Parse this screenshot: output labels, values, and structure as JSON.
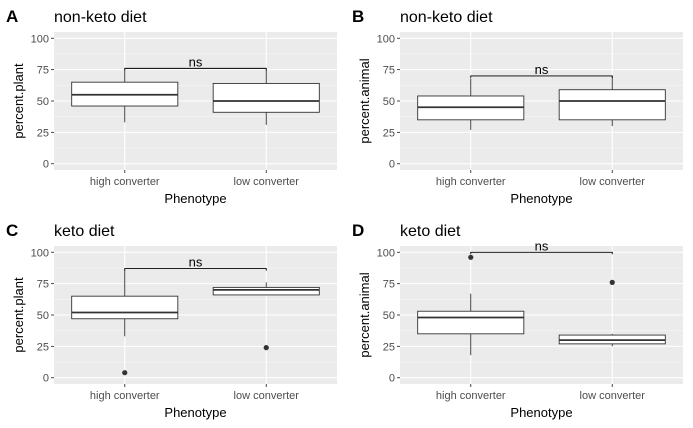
{
  "colors": {
    "panel_background": "#ebebeb",
    "grid_major": "#ffffff",
    "grid_minor": "#f5f5f5",
    "box_fill": "#ffffff",
    "box_stroke": "#333333",
    "outlier": "#333333",
    "tick_text": "#4d4d4d",
    "text": "#000000"
  },
  "chart_data": [
    {
      "panel": "A",
      "type": "boxplot",
      "title": "non-keto diet",
      "xlabel": "Phenotype",
      "ylabel": "percent.plant",
      "categories": [
        "high converter",
        "low converter"
      ],
      "y_ticks": [
        "0",
        "25",
        "50",
        "75",
        "100"
      ],
      "ylim": [
        -5,
        105
      ],
      "grid": true,
      "boxes": [
        {
          "category": "high converter",
          "lower_whisker": 33,
          "q1": 46,
          "median": 55,
          "q3": 65,
          "upper_whisker": 75,
          "outliers": []
        },
        {
          "category": "low converter",
          "lower_whisker": 31,
          "q1": 41,
          "median": 50,
          "q3": 64,
          "upper_whisker": 75,
          "outliers": []
        }
      ],
      "significance": {
        "label": "ns",
        "y": 76,
        "tick": 2
      }
    },
    {
      "panel": "B",
      "type": "boxplot",
      "title": "non-keto diet",
      "xlabel": "Phenotype",
      "ylabel": "percent.animal",
      "categories": [
        "high converter",
        "low converter"
      ],
      "y_ticks": [
        "0",
        "25",
        "50",
        "75",
        "100"
      ],
      "ylim": [
        -5,
        105
      ],
      "grid": true,
      "boxes": [
        {
          "category": "high converter",
          "lower_whisker": 27,
          "q1": 35,
          "median": 45,
          "q3": 54,
          "upper_whisker": 68,
          "outliers": []
        },
        {
          "category": "low converter",
          "lower_whisker": 30,
          "q1": 35,
          "median": 50,
          "q3": 59,
          "upper_whisker": 70,
          "outliers": []
        }
      ],
      "significance": {
        "label": "ns",
        "y": 70,
        "tick": 2
      }
    },
    {
      "panel": "C",
      "type": "boxplot",
      "title": "keto diet",
      "xlabel": "Phenotype",
      "ylabel": "percent.plant",
      "categories": [
        "high converter",
        "low converter"
      ],
      "y_ticks": [
        "0",
        "25",
        "50",
        "75",
        "100"
      ],
      "ylim": [
        -5,
        105
      ],
      "grid": true,
      "boxes": [
        {
          "category": "high converter",
          "lower_whisker": 33,
          "q1": 47,
          "median": 52,
          "q3": 65,
          "upper_whisker": 86,
          "outliers": [
            4
          ]
        },
        {
          "category": "low converter",
          "lower_whisker": 66,
          "q1": 66,
          "median": 70,
          "q3": 72,
          "upper_whisker": 76,
          "outliers": [
            24
          ]
        }
      ],
      "significance": {
        "label": "ns",
        "y": 87,
        "tick": 2
      }
    },
    {
      "panel": "D",
      "type": "boxplot",
      "title": "keto diet",
      "xlabel": "Phenotype",
      "ylabel": "percent.animal",
      "categories": [
        "high converter",
        "low converter"
      ],
      "y_ticks": [
        "0",
        "25",
        "50",
        "75",
        "100"
      ],
      "ylim": [
        -5,
        105
      ],
      "grid": true,
      "boxes": [
        {
          "category": "high converter",
          "lower_whisker": 18,
          "q1": 35,
          "median": 48,
          "q3": 53,
          "upper_whisker": 67,
          "outliers": [
            96
          ]
        },
        {
          "category": "low converter",
          "lower_whisker": 25,
          "q1": 27,
          "median": 30,
          "q3": 34,
          "upper_whisker": 35,
          "outliers": [
            76
          ]
        }
      ],
      "significance": {
        "label": "ns",
        "y": 100,
        "tick": 2
      }
    }
  ]
}
